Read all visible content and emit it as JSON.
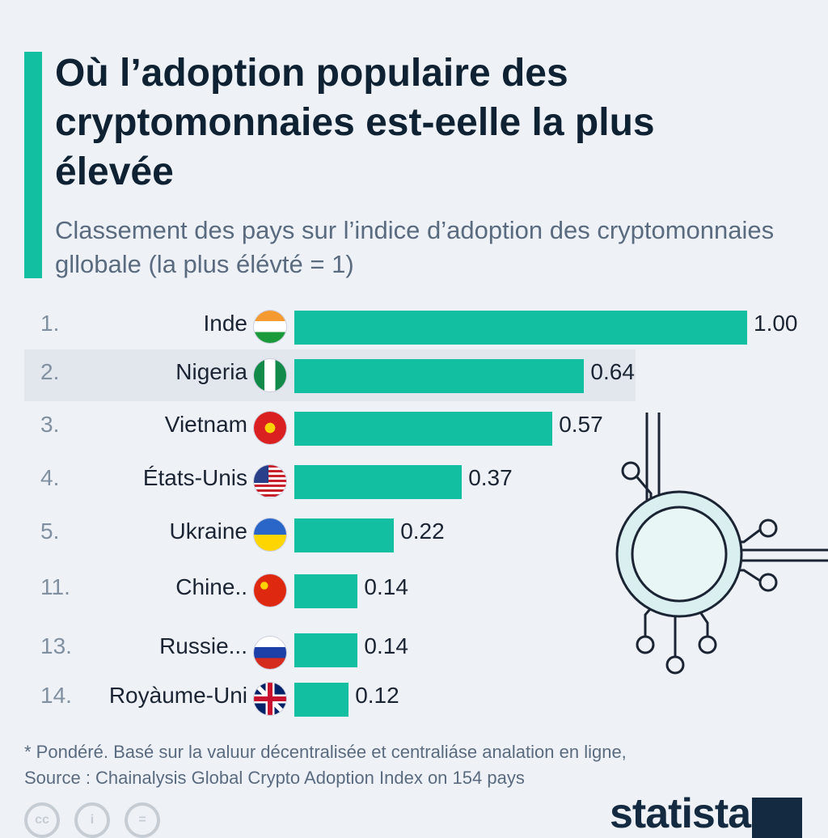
{
  "title": "Où l’adoption populaire des cryptomonnaies est-eelle la plus élevée",
  "subtitle": "Classement des pays sur l’indice d’adoption des cryptomonnaies gllobale (la plus élévté = 1)",
  "chart_data": {
    "type": "bar",
    "orientation": "horizontal",
    "categories": [
      "Inde",
      "Nigeria",
      "Vietnam",
      "États-Unis",
      "Ukraine",
      "Chine..",
      "Russie...",
      "Royàume-Uni"
    ],
    "ranks": [
      "1.",
      "2.",
      "3.",
      "4.",
      "5.",
      "11.",
      "13.",
      "14."
    ],
    "values": [
      1.0,
      0.64,
      0.57,
      0.37,
      0.22,
      0.14,
      0.14,
      0.12
    ],
    "labels": [
      "1.00",
      "0.64",
      "0.57",
      "0.37",
      "0.22",
      "0.14",
      "0.14",
      "0.12"
    ],
    "flags": [
      "india-flag",
      "nigeria-flag",
      "vietnam-flag",
      "usa-flag",
      "ukraine-flag",
      "china-flag",
      "russia-flag",
      "uk-flag"
    ],
    "bar_color": "#12bfa0",
    "xlim": [
      0,
      1
    ]
  },
  "footnote": "* Pondéré. Basé sur la valuur décentralisée et centraliáse analation en ligne,",
  "source": "Source : Chainalysis Global Crypto Adoption Index on 154 pays",
  "logo": "statista"
}
